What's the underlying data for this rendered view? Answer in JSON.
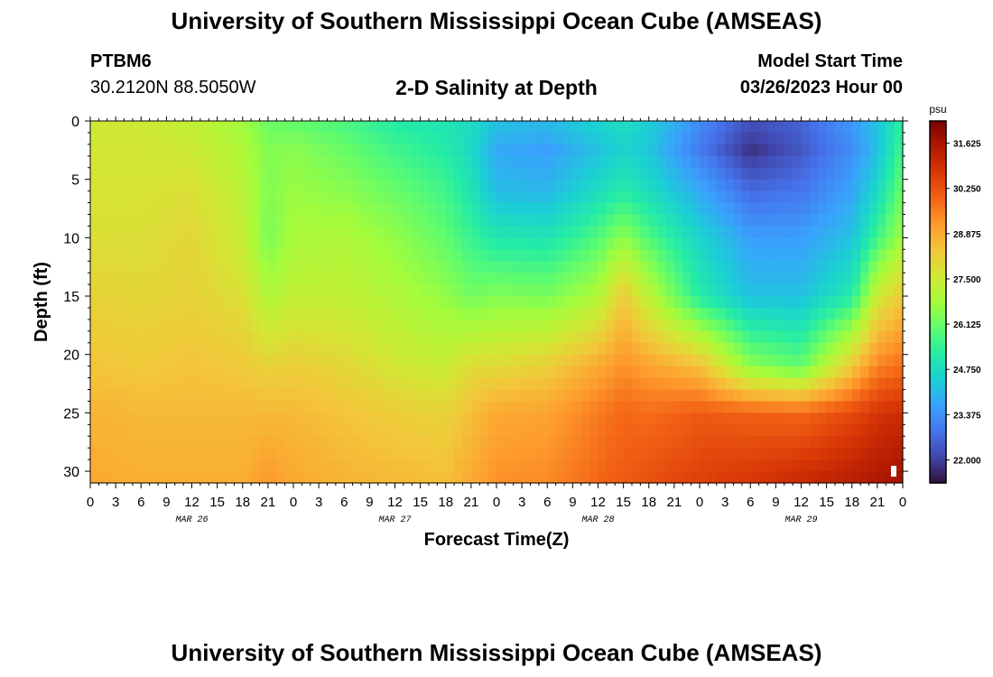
{
  "header": {
    "title": "University of Southern Mississippi Ocean Cube (AMSEAS)",
    "station": "PTBM6",
    "coords": "30.2120N  88.5050W",
    "subtitle": "2-D Salinity at Depth",
    "model_start_label": "Model Start Time",
    "model_start_value": "03/26/2023 Hour 00"
  },
  "chart_data": {
    "type": "heatmap",
    "title": "2-D Salinity at Depth",
    "xlabel": "Forecast Time(Z)",
    "ylabel": "Depth (ft)",
    "xlim": [
      0,
      96
    ],
    "ylim": [
      0,
      31
    ],
    "x_ticks": [
      0,
      3,
      6,
      9,
      12,
      15,
      18,
      21,
      24,
      27,
      30,
      33,
      36,
      39,
      42,
      45,
      48,
      51,
      54,
      57,
      60,
      63,
      66,
      69,
      72,
      75,
      78,
      81,
      84,
      87,
      90,
      93,
      96
    ],
    "x_tick_labels": [
      "0",
      "3",
      "6",
      "9",
      "12",
      "15",
      "18",
      "21",
      "0",
      "3",
      "6",
      "9",
      "12",
      "15",
      "18",
      "21",
      "0",
      "3",
      "6",
      "9",
      "12",
      "15",
      "18",
      "21",
      "0",
      "3",
      "6",
      "9",
      "12",
      "15",
      "18",
      "21",
      "0"
    ],
    "date_labels": [
      {
        "x": 12,
        "label": "MAR 26"
      },
      {
        "x": 36,
        "label": "MAR 27"
      },
      {
        "x": 60,
        "label": "MAR 28"
      },
      {
        "x": 84,
        "label": "MAR 29"
      }
    ],
    "y_ticks": [
      0,
      5,
      10,
      15,
      20,
      25,
      30
    ],
    "y_tick_labels": [
      "0",
      "5",
      "10",
      "15",
      "20",
      "25",
      "30"
    ],
    "colorbar": {
      "unit": "psu",
      "range": [
        21.3,
        32.3
      ],
      "ticks": [
        22.0,
        23.375,
        24.75,
        26.125,
        27.5,
        28.875,
        30.25,
        31.625
      ],
      "tick_labels": [
        "22.000",
        "23.375",
        "24.750",
        "26.125",
        "27.500",
        "28.875",
        "30.250",
        "31.625"
      ],
      "colors": [
        "#30123b",
        "#4145ab",
        "#4675ed",
        "#39a2fc",
        "#1bcfd4",
        "#24eca6",
        "#61fc6c",
        "#a4fc3b",
        "#d1e834",
        "#f3c63a",
        "#fe9b2d",
        "#f36315",
        "#d93806",
        "#b11901",
        "#7a0402"
      ]
    },
    "profiles": [
      {
        "t": 0,
        "values": [
          27.6,
          27.6,
          27.7,
          27.8,
          28.1,
          28.4,
          28.7,
          28.9
        ]
      },
      {
        "t": 6,
        "values": [
          27.5,
          27.6,
          27.7,
          27.8,
          28.0,
          28.3,
          28.6,
          28.8
        ]
      },
      {
        "t": 12,
        "values": [
          27.3,
          27.5,
          27.8,
          28.0,
          28.1,
          28.4,
          28.6,
          28.8
        ]
      },
      {
        "t": 18,
        "values": [
          26.8,
          27.0,
          27.2,
          27.4,
          27.8,
          28.3,
          28.6,
          28.8
        ]
      },
      {
        "t": 21,
        "values": [
          26.1,
          26.4,
          26.4,
          26.3,
          27.0,
          28.1,
          28.6,
          29.2
        ]
      },
      {
        "t": 24,
        "values": [
          26.0,
          26.5,
          26.7,
          26.9,
          27.3,
          28.2,
          28.6,
          28.9
        ]
      },
      {
        "t": 30,
        "values": [
          25.7,
          26.1,
          26.5,
          27.0,
          27.3,
          28.0,
          28.4,
          28.7
        ]
      },
      {
        "t": 36,
        "values": [
          25.2,
          25.6,
          26.1,
          26.6,
          27.0,
          27.6,
          28.2,
          28.6
        ]
      },
      {
        "t": 42,
        "values": [
          25.0,
          25.2,
          25.6,
          26.0,
          26.6,
          27.4,
          28.1,
          28.5
        ]
      },
      {
        "t": 45,
        "values": [
          24.8,
          24.7,
          25.0,
          25.5,
          26.2,
          27.9,
          28.5,
          28.9
        ]
      },
      {
        "t": 48,
        "values": [
          24.2,
          23.8,
          24.1,
          25.1,
          26.4,
          27.9,
          28.9,
          29.3
        ]
      },
      {
        "t": 54,
        "values": [
          24.1,
          23.6,
          24.0,
          25.0,
          26.3,
          28.2,
          29.0,
          29.4
        ]
      },
      {
        "t": 60,
        "values": [
          24.6,
          24.2,
          24.8,
          25.8,
          27.0,
          28.9,
          29.6,
          29.9
        ]
      },
      {
        "t": 63,
        "values": [
          24.8,
          24.6,
          25.2,
          26.6,
          28.3,
          29.3,
          29.9,
          30.1
        ]
      },
      {
        "t": 66,
        "values": [
          24.5,
          24.3,
          24.8,
          25.8,
          27.2,
          29.0,
          29.8,
          30.3
        ]
      },
      {
        "t": 72,
        "values": [
          23.3,
          23.0,
          23.8,
          24.6,
          25.2,
          28.5,
          30.1,
          30.6
        ]
      },
      {
        "t": 78,
        "values": [
          22.3,
          21.8,
          22.7,
          23.6,
          24.2,
          26.5,
          30.0,
          30.8
        ]
      },
      {
        "t": 84,
        "values": [
          22.6,
          22.4,
          22.9,
          23.6,
          24.2,
          26.0,
          29.9,
          31.1
        ]
      },
      {
        "t": 90,
        "values": [
          23.5,
          23.3,
          23.7,
          24.2,
          25.2,
          28.3,
          30.4,
          31.4
        ]
      },
      {
        "t": 93,
        "values": [
          24.2,
          24.2,
          24.7,
          25.6,
          27.5,
          29.5,
          30.8,
          31.6
        ]
      },
      {
        "t": 96,
        "values": [
          25.4,
          25.7,
          26.2,
          26.8,
          28.3,
          29.8,
          31.0,
          31.8
        ]
      }
    ],
    "profile_depths": [
      0,
      2.5,
      6,
      10,
      15,
      21,
      25,
      31
    ]
  }
}
